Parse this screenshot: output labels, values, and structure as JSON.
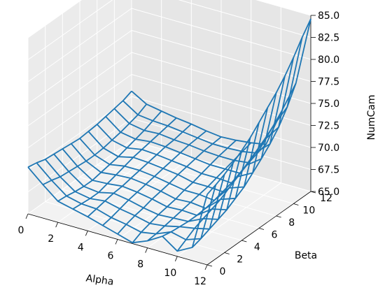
{
  "chart_data": {
    "type": "wireframe-3d",
    "title": "",
    "xlabel": "Alpha",
    "ylabel": "Beta",
    "zlabel": "NumCam",
    "xlim": [
      0,
      12
    ],
    "ylim": [
      0,
      12
    ],
    "zlim": [
      65,
      85
    ],
    "x_ticks": [
      "0",
      "2",
      "4",
      "6",
      "8",
      "10",
      "12"
    ],
    "y_ticks": [
      "0",
      "2",
      "4",
      "6",
      "8",
      "10",
      "12"
    ],
    "z_ticks": [
      "65.0",
      "67.5",
      "70.0",
      "72.5",
      "75.0",
      "77.5",
      "80.0",
      "82.5",
      "85.0"
    ],
    "grid": true,
    "wire_color": "#1f77b4",
    "x": [
      0,
      1,
      2,
      3,
      4,
      5,
      6,
      7,
      8,
      9,
      10,
      11,
      12
    ],
    "y": [
      0,
      1,
      2,
      3,
      4,
      5,
      6,
      7,
      8,
      9,
      10,
      11,
      12
    ],
    "z": [
      [
        70.3,
        68.8,
        67.4,
        67.0,
        66.6,
        66.1,
        65.6,
        65.1,
        65.8,
        66.8,
        65.6,
        66.5,
        73.0
      ],
      [
        70.1,
        68.6,
        67.3,
        66.9,
        66.8,
        66.3,
        66.0,
        65.6,
        65.9,
        66.6,
        66.2,
        66.8,
        73.4
      ],
      [
        69.8,
        68.3,
        67.1,
        66.8,
        67.0,
        66.6,
        66.3,
        65.9,
        66.1,
        66.5,
        66.8,
        67.2,
        73.9
      ],
      [
        69.7,
        68.2,
        67.0,
        66.8,
        67.2,
        66.9,
        66.5,
        66.2,
        66.3,
        66.4,
        67.2,
        67.6,
        74.5
      ],
      [
        69.6,
        68.1,
        67.0,
        67.1,
        67.3,
        67.1,
        66.8,
        66.4,
        66.5,
        66.4,
        67.6,
        68.0,
        75.2
      ],
      [
        69.5,
        68.0,
        67.2,
        67.4,
        67.5,
        67.3,
        67.0,
        66.6,
        66.7,
        66.5,
        68.0,
        68.6,
        76.0
      ],
      [
        69.4,
        68.0,
        67.4,
        67.7,
        67.7,
        67.5,
        67.2,
        66.9,
        66.9,
        66.7,
        68.6,
        69.2,
        77.0
      ],
      [
        69.5,
        68.1,
        67.6,
        68.0,
        67.9,
        67.7,
        67.5,
        67.1,
        67.1,
        67.0,
        69.2,
        70.1,
        78.0
      ],
      [
        69.6,
        68.3,
        67.9,
        68.2,
        68.1,
        67.9,
        67.7,
        67.4,
        67.4,
        67.3,
        69.8,
        71.0,
        79.0
      ],
      [
        69.8,
        68.5,
        68.2,
        68.4,
        68.3,
        68.1,
        67.9,
        67.7,
        67.7,
        67.7,
        70.5,
        72.0,
        80.2
      ],
      [
        70.0,
        68.8,
        68.5,
        68.6,
        68.4,
        68.3,
        68.1,
        68.0,
        68.0,
        68.2,
        71.2,
        73.2,
        81.6
      ],
      [
        70.2,
        69.1,
        68.9,
        68.8,
        68.6,
        68.4,
        68.2,
        68.2,
        68.3,
        68.6,
        72.0,
        74.8,
        83.2
      ],
      [
        70.6,
        69.6,
        69.3,
        69.0,
        68.8,
        68.5,
        68.3,
        68.4,
        68.6,
        68.9,
        73.0,
        76.8,
        84.6
      ]
    ]
  }
}
